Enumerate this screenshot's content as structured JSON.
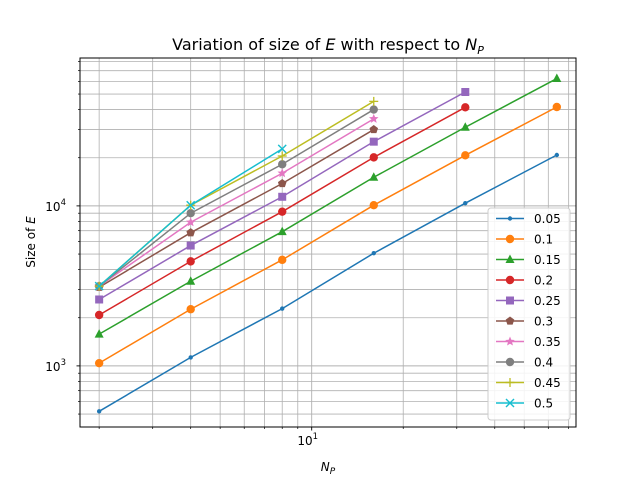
{
  "chart_data": {
    "type": "line",
    "title": "Variation of size of E with respect to N_P",
    "title_parts": {
      "pre": "Variation of size of ",
      "var": "E",
      "mid": " with respect to ",
      "var2": "N",
      "var2_sub": "P"
    },
    "xlabel": "N_P",
    "xlabel_parts": {
      "var": "N",
      "sub": "P"
    },
    "ylabel": "Size of E",
    "ylabel_parts": {
      "pre": "Size of ",
      "var": "E"
    },
    "xscale": "log",
    "yscale": "log",
    "xlim": [
      1.73,
      74
    ],
    "ylim": [
      415,
      84000
    ],
    "x_major_ticks": [
      {
        "value": 10,
        "base": "10",
        "exp": "1"
      }
    ],
    "y_major_ticks": [
      {
        "value": 1000,
        "base": "10",
        "exp": "3"
      },
      {
        "value": 10000,
        "base": "10",
        "exp": "4"
      }
    ],
    "grid": "both-major-minor",
    "legend_position": "lower-right",
    "series": [
      {
        "name": "0.05",
        "color": "#1f77b4",
        "marker": "point",
        "x": [
          2,
          4,
          8,
          16,
          32,
          64
        ],
        "values": [
          520,
          1130,
          2280,
          5060,
          10400,
          20800
        ]
      },
      {
        "name": "0.1",
        "color": "#ff7f0e",
        "marker": "circle",
        "x": [
          2,
          4,
          8,
          16,
          32,
          64
        ],
        "values": [
          1040,
          2260,
          4600,
          10100,
          20700,
          41500
        ]
      },
      {
        "name": "0.15",
        "color": "#2ca02c",
        "marker": "triangle",
        "x": [
          2,
          4,
          8,
          16,
          32,
          64
        ],
        "values": [
          1580,
          3380,
          6900,
          15100,
          31000,
          62500
        ]
      },
      {
        "name": "0.2",
        "color": "#d62728",
        "marker": "circle",
        "x": [
          2,
          4,
          8,
          16,
          32
        ],
        "values": [
          2080,
          4500,
          9200,
          20100,
          41300
        ]
      },
      {
        "name": "0.25",
        "color": "#9467bd",
        "marker": "square",
        "x": [
          2,
          4,
          8,
          16,
          32
        ],
        "values": [
          2600,
          5650,
          11400,
          25200,
          51500
        ]
      },
      {
        "name": "0.3",
        "color": "#8c564b",
        "marker": "pentagon",
        "x": [
          2,
          4,
          8,
          16
        ],
        "values": [
          3100,
          6800,
          13800,
          30000
        ]
      },
      {
        "name": "0.35",
        "color": "#e377c2",
        "marker": "star",
        "x": [
          2,
          4,
          8,
          16
        ],
        "values": [
          3150,
          7900,
          16000,
          35000
        ]
      },
      {
        "name": "0.4",
        "color": "#7f7f7f",
        "marker": "circle",
        "x": [
          2,
          4,
          8,
          16
        ],
        "values": [
          3150,
          9000,
          18200,
          40000
        ]
      },
      {
        "name": "0.45",
        "color": "#bcbd22",
        "marker": "plus",
        "x": [
          2,
          4,
          8,
          16
        ],
        "values": [
          3150,
          10100,
          20500,
          45000
        ]
      },
      {
        "name": "0.5",
        "color": "#17becf",
        "marker": "x",
        "x": [
          2,
          4,
          8
        ],
        "values": [
          3150,
          10100,
          22700
        ]
      }
    ]
  }
}
